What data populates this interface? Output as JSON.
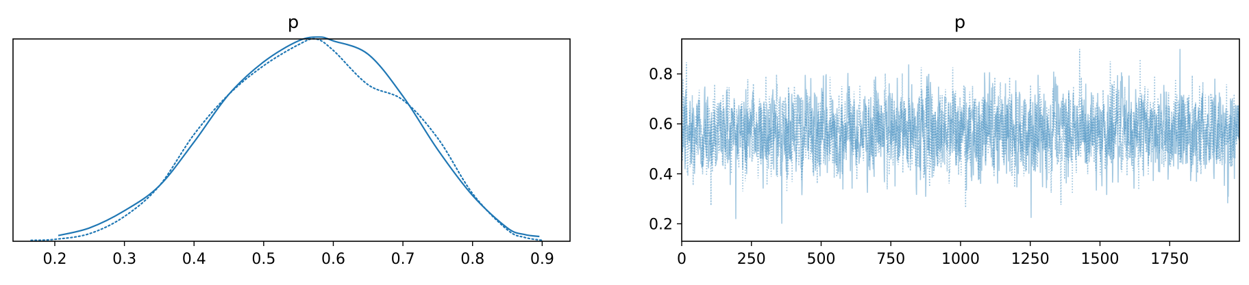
{
  "chart_data": [
    {
      "type": "line",
      "title": "p",
      "xlabel": "",
      "ylabel": "",
      "xlim": [
        0.14,
        0.94
      ],
      "ylim": [
        0,
        1.06
      ],
      "x_ticks": [
        0.2,
        0.3,
        0.4,
        0.5,
        0.6,
        0.7,
        0.8,
        0.9
      ],
      "x_tick_labels": [
        "0.2",
        "0.3",
        "0.4",
        "0.5",
        "0.6",
        "0.7",
        "0.8",
        "0.9"
      ],
      "y_ticks_visible": false,
      "grid": false,
      "series": [
        {
          "style": "solid",
          "color": "#1f77b4",
          "x": [
            0.205,
            0.25,
            0.3,
            0.35,
            0.4,
            0.45,
            0.5,
            0.55,
            0.58,
            0.6,
            0.65,
            0.7,
            0.75,
            0.8,
            0.85,
            0.875,
            0.896
          ],
          "y": [
            0.03,
            0.07,
            0.16,
            0.29,
            0.52,
            0.77,
            0.94,
            1.05,
            1.07,
            1.05,
            0.98,
            0.76,
            0.48,
            0.24,
            0.07,
            0.035,
            0.025
          ]
        },
        {
          "style": "dotted",
          "color": "#1f77b4",
          "x": [
            0.166,
            0.2,
            0.25,
            0.3,
            0.35,
            0.4,
            0.45,
            0.5,
            0.55,
            0.575,
            0.6,
            0.65,
            0.7,
            0.75,
            0.8,
            0.85,
            0.875,
            0.9
          ],
          "y": [
            0.005,
            0.01,
            0.04,
            0.13,
            0.29,
            0.56,
            0.77,
            0.92,
            1.03,
            1.06,
            1.0,
            0.82,
            0.74,
            0.54,
            0.25,
            0.06,
            0.02,
            0.005
          ]
        }
      ]
    },
    {
      "type": "line",
      "title": "p",
      "xlabel": "",
      "ylabel": "",
      "xlim": [
        0,
        2000
      ],
      "ylim": [
        0.13,
        0.94
      ],
      "x_ticks": [
        0,
        250,
        500,
        750,
        1000,
        1250,
        1500,
        1750
      ],
      "x_tick_labels": [
        "0",
        "250",
        "500",
        "750",
        "1000",
        "1250",
        "1500",
        "1750"
      ],
      "y_ticks": [
        0.2,
        0.4,
        0.6,
        0.8
      ],
      "y_tick_labels": [
        "0.2",
        "0.4",
        "0.6",
        "0.8"
      ],
      "grid": false,
      "series": [
        {
          "style": "solid",
          "color": "#1f77b4",
          "alpha": 0.4,
          "n_draws": 2000,
          "mean": 0.57,
          "sd": 0.13,
          "min": 0.2,
          "max": 0.9
        },
        {
          "style": "dotted",
          "color": "#1f77b4",
          "alpha": 0.45,
          "n_draws": 2000,
          "mean": 0.57,
          "sd": 0.13,
          "min": 0.17,
          "max": 0.9
        }
      ]
    }
  ]
}
